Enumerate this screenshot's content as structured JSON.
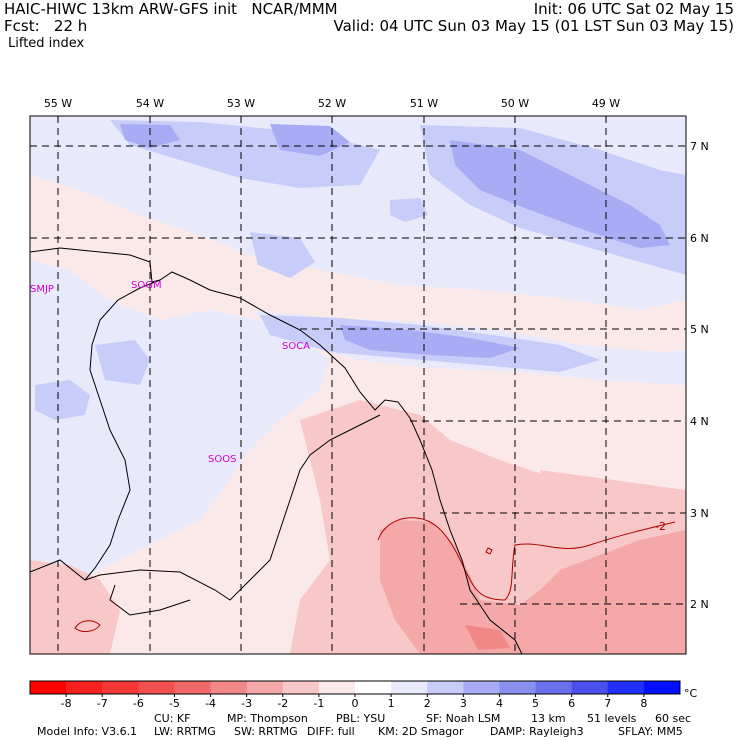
{
  "header": {
    "left_line1": "HAIC-HIWC 13km ARW-GFS init   NCAR/MMM",
    "left_line2": "Fcst:   22 h",
    "field_name": "Lifted index",
    "right_line1": "Init: 06 UTC Sat 02 May 15",
    "right_line2": "Valid: 04 UTC Sun 03 May 15 (01 LST Sun 03 May 15)"
  },
  "map": {
    "lon_labels": [
      "55 W",
      "54 W",
      "53 W",
      "52 W",
      "51 W",
      "50 W",
      "49 W"
    ],
    "lat_labels": [
      "7 N",
      "6 N",
      "5 N",
      "4 N",
      "3 N",
      "2 N"
    ],
    "stations": [
      "SMJP",
      "SOGM",
      "SOCA",
      "SOOS"
    ],
    "contour_label": "-2",
    "colors": {
      "strong_blue": "#a8acf4",
      "light_blue": "#e8eafc",
      "pale_pink": "#fbe8e8",
      "pink": "#f8c8c8",
      "red_pink": "#f4a8a8"
    }
  },
  "colorbar": {
    "ticks": [
      "-8",
      "-7",
      "-6",
      "-5",
      "-4",
      "-3",
      "-2",
      "-1",
      "0",
      "1",
      "2",
      "3",
      "4",
      "5",
      "6",
      "7",
      "8"
    ],
    "unit": "°C",
    "colors": [
      "#ff0000",
      "#f62020",
      "#f43838",
      "#f25050",
      "#f06868",
      "#f08888",
      "#f4a8a8",
      "#f8c8c8",
      "#fbe8e8",
      "#ffffff",
      "#e8eafc",
      "#c8ccf8",
      "#a8acf4",
      "#8890f0",
      "#6870ec",
      "#4850ee",
      "#2030f4",
      "#0010ff"
    ]
  },
  "footer": {
    "line1": [
      {
        "label": "Model Info: V3.6.1"
      },
      {
        "label": "CU: KF"
      },
      {
        "label": "MP: Thompson"
      },
      {
        "label": "PBL: YSU"
      },
      {
        "label": "SF: Noah LSM"
      },
      {
        "label": "13 km"
      },
      {
        "label": "51 levels"
      },
      {
        "label": "60 sec"
      }
    ],
    "line2": [
      {
        "label": "LW: RRTMG"
      },
      {
        "label": "SW: RRTMG"
      },
      {
        "label": "DIFF: full"
      },
      {
        "label": "KM: 2D Smagor"
      },
      {
        "label": "DAMP: Rayleigh3"
      },
      {
        "label": "SFLAY: MM5"
      }
    ]
  }
}
